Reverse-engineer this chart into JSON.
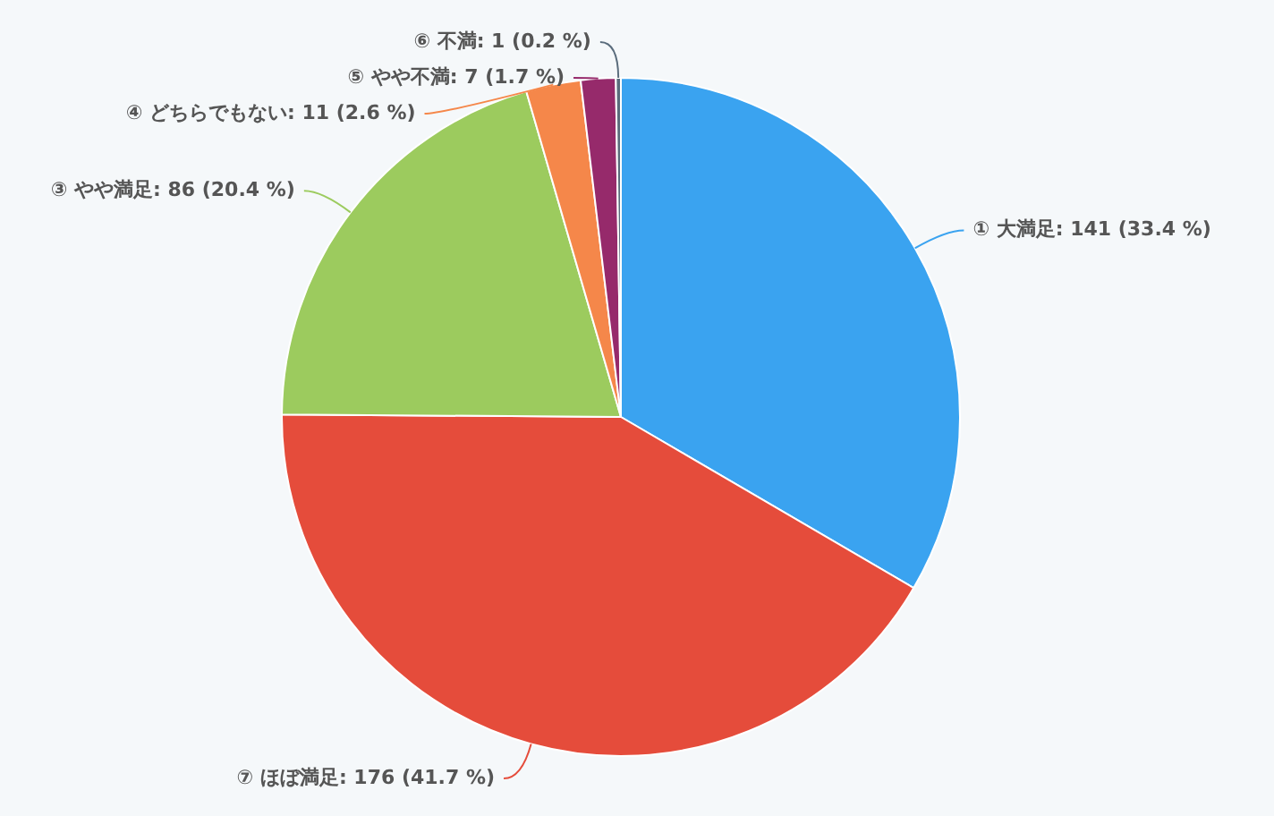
{
  "chart_data": {
    "type": "pie",
    "categories": [
      "① 大満足",
      "⑦ ほぼ満足",
      "③ やや満足",
      "④ どちらでもない",
      "⑤ やや不満",
      "⑥ 不満"
    ],
    "values": [
      141,
      176,
      86,
      11,
      7,
      1
    ],
    "value_labels": [
      "141 (33.4 %)",
      "176 (41.7 %)",
      "86 (20.4 %)",
      "11 (2.6 %)",
      "7 (1.7 %)",
      "1 (0.2 %)"
    ],
    "colors": [
      "#3aa3f0",
      "#e54c3b",
      "#9ccb5e",
      "#f5874a",
      "#962a6b",
      "#5a6c7c"
    ],
    "legend": false
  }
}
